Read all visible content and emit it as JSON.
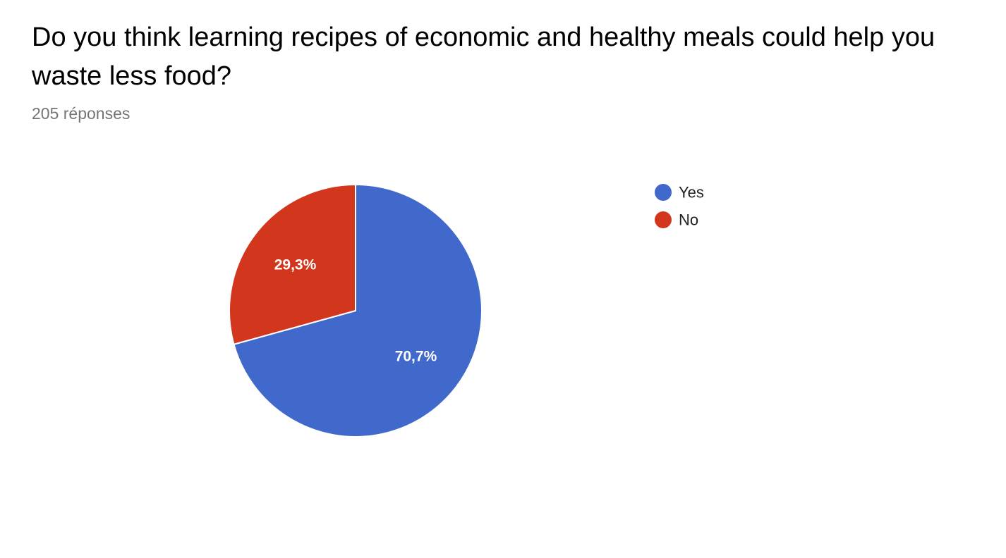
{
  "question": {
    "title": "Do you think learning recipes of economic and healthy meals could help you waste less food?",
    "responses": "205 réponses"
  },
  "chart_data": {
    "type": "pie",
    "categories": [
      "Yes",
      "No"
    ],
    "values": [
      70.7,
      29.3
    ],
    "labels": [
      "70,7%",
      "29,3%"
    ],
    "colors": [
      "#4169CB",
      "#D2371E"
    ],
    "start_angle_deg": 90,
    "direction": "clockwise",
    "legend": "right"
  }
}
